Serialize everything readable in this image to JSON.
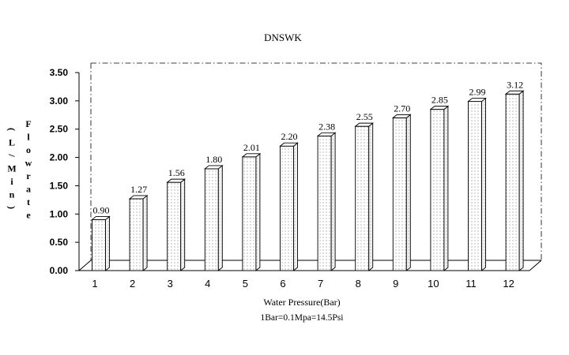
{
  "chart_data": {
    "type": "bar",
    "title": "DNSWK",
    "xlabel": "Water Pressure(Bar)",
    "subtitle": "1Bar=0.1Mpa=14.5Psi",
    "ylabel_left": "(L/Min)",
    "ylabel_right": "Flowrate",
    "categories": [
      "1",
      "2",
      "3",
      "4",
      "5",
      "6",
      "7",
      "8",
      "9",
      "10",
      "11",
      "12"
    ],
    "values": [
      0.9,
      1.27,
      1.56,
      1.8,
      2.01,
      2.2,
      2.38,
      2.55,
      2.7,
      2.85,
      2.99,
      3.12
    ],
    "value_labels": [
      "0.90",
      "1.27",
      "1.56",
      "1.80",
      "2.01",
      "2.20",
      "2.38",
      "2.55",
      "2.70",
      "2.85",
      "2.99",
      "3.12"
    ],
    "y_ticks": [
      "0.00",
      "0.50",
      "1.00",
      "1.50",
      "2.00",
      "2.50",
      "3.00",
      "3.50"
    ],
    "ylim": [
      0,
      3.5
    ],
    "grid": false,
    "legend": "none",
    "bar_fill": "dotted",
    "colors": {
      "bar_face": "#ffffff",
      "bar_dots": "#555555",
      "stroke": "#000000"
    }
  }
}
